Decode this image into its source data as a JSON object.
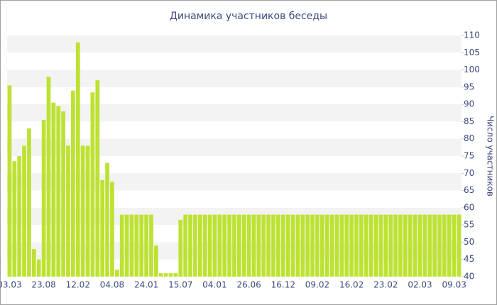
{
  "chart_data": {
    "type": "bar",
    "title": "Динамика участников беседы",
    "y_label": "Число участников",
    "color": "#bde234",
    "categories": [
      "03.03",
      null,
      null,
      null,
      null,
      null,
      null,
      "23.08",
      null,
      null,
      null,
      null,
      null,
      null,
      "12.02",
      null,
      null,
      null,
      null,
      null,
      null,
      "04.08",
      null,
      null,
      null,
      null,
      null,
      null,
      "24.01",
      null,
      null,
      null,
      null,
      null,
      null,
      "15.07",
      null,
      null,
      null,
      null,
      null,
      null,
      "04.01",
      null,
      null,
      null,
      null,
      null,
      null,
      "26.06",
      null,
      null,
      null,
      null,
      null,
      null,
      "16.12",
      null,
      null,
      null,
      null,
      null,
      null,
      "09.02",
      null,
      null,
      null,
      null,
      null,
      null,
      "16.02",
      null,
      null,
      null,
      null,
      null,
      null,
      "23.02",
      null,
      null,
      null,
      null,
      null,
      null,
      "02.03",
      null,
      null,
      null,
      null,
      null,
      null,
      "09.03",
      null
    ],
    "values": [
      95.5,
      73.5,
      75,
      78,
      83,
      48,
      45,
      85.5,
      98,
      90.5,
      89.5,
      88,
      78,
      94,
      108,
      78,
      78,
      93.5,
      97,
      68,
      73,
      67.5,
      42,
      58,
      58,
      58,
      58,
      58,
      58,
      58,
      49,
      41,
      41,
      41,
      41,
      56.5,
      58,
      58,
      58,
      58,
      58,
      58,
      58,
      58,
      58,
      58,
      58,
      58,
      58,
      58,
      58,
      58,
      58,
      58,
      58,
      58,
      58,
      58,
      58,
      58,
      58,
      58,
      58,
      58,
      58,
      58,
      58,
      58,
      58,
      58,
      58,
      58,
      58,
      58,
      58,
      58,
      58,
      58,
      58,
      58,
      58,
      58,
      58,
      58,
      58,
      58,
      58,
      58,
      58,
      58,
      58,
      58,
      58
    ],
    "ylim": [
      40,
      110
    ],
    "yticks": [
      40,
      45,
      50,
      55,
      60,
      65,
      70,
      75,
      80,
      85,
      90,
      95,
      100,
      105,
      110
    ],
    "grid": true
  }
}
